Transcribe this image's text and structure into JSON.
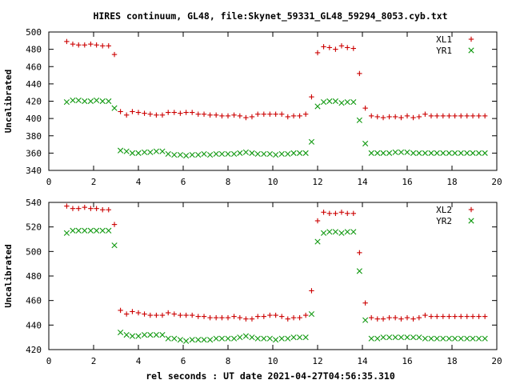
{
  "title": "HIRES continuum, GL48, file:Skynet_59331_GL48_59294_8053.cyb.txt",
  "xlabel": "rel seconds : UT date 2021-04-27T04:56:35.310",
  "colors": {
    "xl": "#cc0000",
    "yr": "#119911",
    "frame": "#000000"
  },
  "chart_data": [
    {
      "type": "scatter",
      "ylabel": "Uncalibrated",
      "xlim": [
        0,
        20
      ],
      "ylim": [
        340,
        500
      ],
      "xticks": [
        0,
        2,
        4,
        6,
        8,
        10,
        12,
        14,
        16,
        18,
        20
      ],
      "yticks": [
        340,
        360,
        380,
        400,
        420,
        440,
        460,
        480,
        500
      ],
      "legend": "top-right",
      "x": [
        0.8,
        1.07,
        1.33,
        1.6,
        1.87,
        2.13,
        2.4,
        2.67,
        2.93,
        3.2,
        3.47,
        3.73,
        4.0,
        4.27,
        4.53,
        4.8,
        5.07,
        5.33,
        5.6,
        5.87,
        6.13,
        6.4,
        6.67,
        6.93,
        7.2,
        7.47,
        7.73,
        8.0,
        8.27,
        8.53,
        8.8,
        9.07,
        9.33,
        9.6,
        9.87,
        10.13,
        10.4,
        10.67,
        10.93,
        11.2,
        11.47,
        11.73,
        12.0,
        12.27,
        12.53,
        12.8,
        13.07,
        13.33,
        13.6,
        13.87,
        14.13,
        14.4,
        14.67,
        14.93,
        15.2,
        15.47,
        15.73,
        16.0,
        16.27,
        16.53,
        16.8,
        17.07,
        17.33,
        17.6,
        17.87,
        18.13,
        18.4,
        18.67,
        18.93,
        19.2,
        19.47
      ],
      "series": [
        {
          "name": "XL1",
          "marker": "plus",
          "values": [
            489,
            486,
            485,
            485,
            486,
            485,
            484,
            484,
            474,
            408,
            404,
            408,
            407,
            406,
            405,
            404,
            404,
            407,
            407,
            406,
            407,
            407,
            405,
            405,
            404,
            404,
            403,
            403,
            404,
            403,
            401,
            402,
            405,
            405,
            405,
            405,
            405,
            402,
            403,
            403,
            405,
            425,
            476,
            483,
            482,
            480,
            484,
            482,
            481,
            452,
            412,
            403,
            402,
            401,
            402,
            402,
            401,
            403,
            401,
            402,
            405,
            403,
            403,
            403,
            403,
            403,
            403,
            403,
            403,
            403,
            403
          ]
        },
        {
          "name": "YR1",
          "marker": "cross",
          "values": [
            419,
            421,
            421,
            420,
            420,
            421,
            420,
            420,
            412,
            363,
            362,
            360,
            360,
            361,
            361,
            362,
            362,
            359,
            358,
            358,
            357,
            358,
            358,
            359,
            358,
            359,
            359,
            359,
            359,
            360,
            361,
            360,
            359,
            359,
            359,
            358,
            359,
            359,
            360,
            360,
            360,
            373,
            414,
            419,
            420,
            420,
            418,
            419,
            419,
            398,
            371,
            360,
            360,
            360,
            360,
            361,
            361,
            361,
            360,
            360,
            360,
            360,
            360,
            360,
            360,
            360,
            360,
            360,
            360,
            360,
            360
          ]
        }
      ]
    },
    {
      "type": "scatter",
      "ylabel": "Uncalibrated",
      "xlim": [
        0,
        20
      ],
      "ylim": [
        420,
        540
      ],
      "xticks": [
        0,
        2,
        4,
        6,
        8,
        10,
        12,
        14,
        16,
        18,
        20
      ],
      "yticks": [
        420,
        440,
        460,
        480,
        500,
        520,
        540
      ],
      "legend": "top-right",
      "x": [
        0.8,
        1.07,
        1.33,
        1.6,
        1.87,
        2.13,
        2.4,
        2.67,
        2.93,
        3.2,
        3.47,
        3.73,
        4.0,
        4.27,
        4.53,
        4.8,
        5.07,
        5.33,
        5.6,
        5.87,
        6.13,
        6.4,
        6.67,
        6.93,
        7.2,
        7.47,
        7.73,
        8.0,
        8.27,
        8.53,
        8.8,
        9.07,
        9.33,
        9.6,
        9.87,
        10.13,
        10.4,
        10.67,
        10.93,
        11.2,
        11.47,
        11.73,
        12.0,
        12.27,
        12.53,
        12.8,
        13.07,
        13.33,
        13.6,
        13.87,
        14.13,
        14.4,
        14.67,
        14.93,
        15.2,
        15.47,
        15.73,
        16.0,
        16.27,
        16.53,
        16.8,
        17.07,
        17.33,
        17.6,
        17.87,
        18.13,
        18.4,
        18.67,
        18.93,
        19.2,
        19.47
      ],
      "series": [
        {
          "name": "XL2",
          "marker": "plus",
          "values": [
            537,
            535,
            535,
            536,
            535,
            535,
            534,
            534,
            522,
            452,
            449,
            451,
            450,
            449,
            448,
            448,
            448,
            450,
            449,
            448,
            448,
            448,
            447,
            447,
            446,
            446,
            446,
            446,
            447,
            446,
            445,
            445,
            447,
            447,
            448,
            448,
            447,
            445,
            446,
            446,
            448,
            468,
            525,
            532,
            531,
            531,
            532,
            531,
            531,
            499,
            458,
            446,
            445,
            445,
            446,
            446,
            445,
            446,
            445,
            446,
            448,
            447,
            447,
            447,
            447,
            447,
            447,
            447,
            447,
            447,
            447
          ]
        },
        {
          "name": "YR2",
          "marker": "cross",
          "values": [
            515,
            517,
            517,
            517,
            517,
            517,
            517,
            517,
            505,
            434,
            432,
            431,
            431,
            432,
            432,
            432,
            432,
            429,
            429,
            428,
            427,
            428,
            428,
            428,
            428,
            429,
            429,
            429,
            429,
            430,
            431,
            430,
            429,
            429,
            429,
            428,
            429,
            429,
            430,
            430,
            430,
            449,
            508,
            515,
            516,
            516,
            515,
            516,
            516,
            484,
            444,
            429,
            429,
            430,
            430,
            430,
            430,
            430,
            430,
            430,
            429,
            429,
            429,
            429,
            429,
            429,
            429,
            429,
            429,
            429,
            429
          ]
        }
      ]
    }
  ]
}
